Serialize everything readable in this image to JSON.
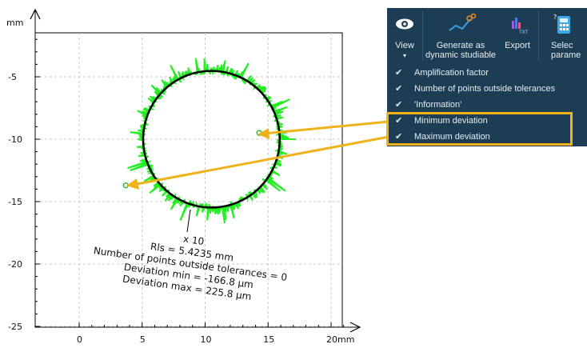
{
  "plot": {
    "y_unit": "mm",
    "x_unit": "mm",
    "x_ticks": [
      "0",
      "5",
      "10",
      "15",
      "20"
    ],
    "y_ticks": [
      "-5",
      "-10",
      "-15",
      "-20",
      "-25"
    ],
    "circle": {
      "center_x_mm": 10.5,
      "center_y_mm": -10.0,
      "radius_mm": 5.4235
    },
    "min_point": {
      "x_mm": 3.7,
      "y_mm": -13.7
    },
    "max_point": {
      "x_mm": 14.3,
      "y_mm": -9.5
    },
    "colors": {
      "deviation": "#22ee22",
      "circle": "#000000",
      "grid": "#c8c8c8",
      "arrow": "#f0b21b"
    },
    "annotation": {
      "amplification": "x 10",
      "rls": "Rls = 5.4235 mm",
      "points_outside": "Number of points outside tolerances = 0",
      "dev_min": "Deviation min = -166.8 µm",
      "dev_max": "Deviation max = 225.8 µm"
    }
  },
  "ribbon": {
    "view_label": "View",
    "view_icon": "eye-icon",
    "generate_label_1": "Generate as",
    "generate_label_2": "dynamic studiable",
    "generate_icon": "link-chart-icon",
    "export_label": "Export",
    "export_icon": "export-txt-icon",
    "select_label_1": "Selec",
    "select_label_2": "parame",
    "select_icon": "calculator-icon"
  },
  "menu": {
    "items": [
      {
        "label": "Amplification factor",
        "checked": true
      },
      {
        "label": "Number of points outside tolerances",
        "checked": true
      },
      {
        "label": "'Information'",
        "checked": true
      },
      {
        "label": "Minimum deviation",
        "checked": true
      },
      {
        "label": "Maximum deviation",
        "checked": true
      }
    ],
    "check_glyph": "✔"
  }
}
